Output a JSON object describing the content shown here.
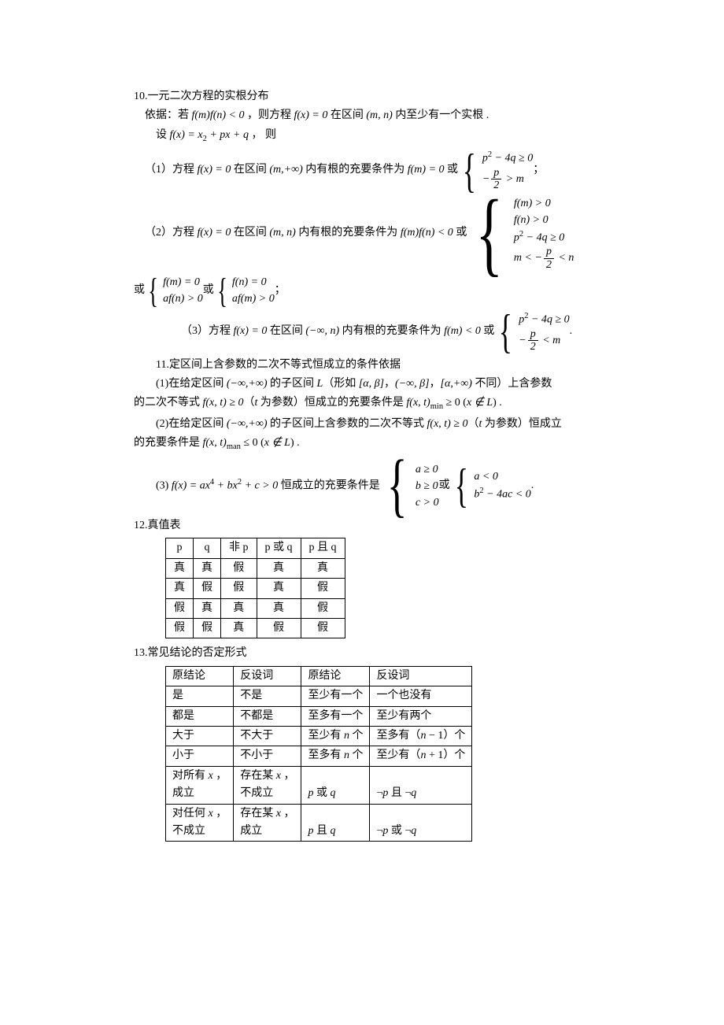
{
  "typography": {
    "body_font": "SimSun",
    "math_font": "Times New Roman",
    "body_fontsize_pt": 10.5,
    "text_color": "#000000",
    "background_color": "#ffffff",
    "table_border_color": "#000000"
  },
  "s10": {
    "title": "10.一元二次方程的实根分布",
    "basis": "依据：若",
    "basis_math1": "f(m)f(n) < 0",
    "basis_mid": "，则方程",
    "basis_math2": "f(x) = 0",
    "basis_end": "在区间 (m, n) 内至少有一个实根 .",
    "let": "设",
    "let_math": "f(x) = x",
    "let_math_sub": "2",
    "let_math2": " + px + q",
    "let_end": "， 则",
    "p1": {
      "label": "（1）方程",
      "interval_pre": "在区间",
      "interval": "(m,+∞)",
      "mid": "内有根的充要条件为",
      "cond1": "f(m) = 0",
      "or": "或",
      "brace": [
        "p² − 4q ≥ 0",
        "−p/2 > m"
      ],
      "tail": "；"
    },
    "p2": {
      "label": "（2）方程",
      "interval": "(m, n)",
      "mid": "内有根的充要条件为",
      "cond1": "f(m)f(n) < 0",
      "or": "或",
      "brace": [
        "f(m) > 0",
        "f(n) > 0",
        "p² − 4q ≥ 0",
        "m < −p/2 < n"
      ],
      "line2_or1": "或",
      "line2_brace1": [
        "f(m) = 0",
        "af(n) > 0"
      ],
      "line2_or2": "或",
      "line2_brace2": [
        "f(n) = 0",
        "af(m) > 0"
      ],
      "tail": "；"
    },
    "p3": {
      "label": "（3）方程",
      "interval": "(−∞, n)",
      "mid": "内有根的充要条件为",
      "cond1": "f(m) < 0",
      "or": "或",
      "brace": [
        "p² − 4q ≥ 0",
        "−p/2 < m"
      ],
      "tail": "."
    }
  },
  "s11": {
    "title": "11.定区间上含参数的二次不等式恒成立的条件依据",
    "p1a": "(1)在给定区间 (−∞,+∞) 的子区间 L（形如 [α, β]，(−∞, β]，[α,+∞) 不同）上含参数",
    "p1b": "的二次不等式 f(x, t) ≥ 0（t 为参数）恒成立的充要条件是 f(x, t)",
    "p1_sub": "min",
    "p1c": " ≥ 0 (x ∉ L) .",
    "p2a": "(2)在给定区间 (−∞,+∞) 的子区间上含参数的二次不等式 f(x, t) ≥ 0（t 为参数）恒成立",
    "p2b": "的充要条件是 f(x, t)",
    "p2_sub": "man",
    "p2c": " ≤ 0 (x ∉ L) .",
    "p3_label": "(3) ",
    "p3_math": "f(x) = ax⁴ + bx² + c > 0",
    "p3_mid": " 恒成立的充要条件是",
    "p3_brace1": [
      "a ≥ 0",
      "b ≥ 0",
      "c > 0"
    ],
    "p3_or": "或",
    "p3_brace2": [
      "a < 0",
      "b² − 4ac < 0"
    ],
    "p3_tail": "."
  },
  "s12": {
    "title": "12.真值表",
    "columns": [
      "p",
      "q",
      "非 p",
      "p 或 q",
      "p 且 q"
    ],
    "rows": [
      [
        "真",
        "真",
        "假",
        "真",
        "真"
      ],
      [
        "真",
        "假",
        "假",
        "真",
        "假"
      ],
      [
        "假",
        "真",
        "真",
        "真",
        "假"
      ],
      [
        "假",
        "假",
        "真",
        "假",
        "假"
      ]
    ]
  },
  "s13": {
    "title": "13.常见结论的否定形式",
    "columns": [
      "原结论",
      "反设词",
      "原结论",
      "反设词"
    ],
    "rows": [
      [
        "是",
        "不是",
        "至少有一个",
        "一个也没有"
      ],
      [
        "都是",
        "不都是",
        "至多有一个",
        "至少有两个"
      ],
      [
        "大于",
        "不大于",
        "至少有 n 个",
        "至多有（n − 1）个"
      ],
      [
        "小于",
        "不小于",
        "至多有 n 个",
        "至少有（n + 1）个"
      ],
      [
        "对所有 x ，\n成立",
        "存在某 x ，\n不成立",
        "p 或 q",
        "¬p 且 ¬q"
      ],
      [
        "对任何 x ，\n不成立",
        "存在某 x ，\n成立",
        "p 且 q",
        "¬p 或 ¬q"
      ]
    ]
  }
}
